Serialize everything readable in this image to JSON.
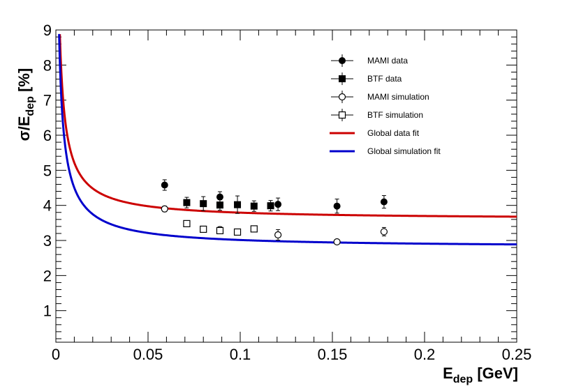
{
  "chart_data": {
    "type": "scatter",
    "title": "",
    "xlabel": {
      "main": "E",
      "sub": "dep",
      "unit": " [GeV]"
    },
    "ylabel": {
      "main": "σ/E",
      "sub": "dep",
      "unit": " [%]"
    },
    "xlim": [
      0,
      0.25
    ],
    "ylim": [
      0.1,
      9
    ],
    "x_ticks": [
      0,
      0.05,
      0.1,
      0.15,
      0.2,
      0.25
    ],
    "x_tick_labels": [
      "0",
      "0.05",
      "0.1",
      "0.15",
      "0.2",
      "0.25"
    ],
    "y_ticks": [
      1,
      2,
      3,
      4,
      5,
      6,
      7,
      8,
      9
    ],
    "y_tick_labels": [
      "1",
      "2",
      "3",
      "4",
      "5",
      "6",
      "7",
      "8",
      "9"
    ],
    "grid": false,
    "legend_position": "top-right",
    "series": [
      {
        "name": "MAMI data",
        "marker": "filled-circle",
        "color": "#000000",
        "points": [
          {
            "x": 0.059,
            "y": 4.58,
            "err": 0.15
          },
          {
            "x": 0.089,
            "y": 4.24,
            "err": 0.15
          },
          {
            "x": 0.1205,
            "y": 4.03,
            "err": 0.18
          },
          {
            "x": 0.1525,
            "y": 3.98,
            "err": 0.2
          },
          {
            "x": 0.178,
            "y": 4.1,
            "err": 0.18
          }
        ]
      },
      {
        "name": "BTF data",
        "marker": "filled-square",
        "color": "#000000",
        "points": [
          {
            "x": 0.071,
            "y": 4.08,
            "err": 0.15
          },
          {
            "x": 0.08,
            "y": 4.05,
            "err": 0.2
          },
          {
            "x": 0.089,
            "y": 4.01,
            "err": 0.15
          },
          {
            "x": 0.0985,
            "y": 4.02,
            "err": 0.25
          },
          {
            "x": 0.1075,
            "y": 3.98,
            "err": 0.15
          },
          {
            "x": 0.1165,
            "y": 3.99,
            "err": 0.15
          }
        ]
      },
      {
        "name": "MAMI simulation",
        "marker": "open-circle",
        "color": "#000000",
        "points": [
          {
            "x": 0.059,
            "y": 3.9,
            "err": 0.08
          },
          {
            "x": 0.089,
            "y": 3.31,
            "err": 0.08
          },
          {
            "x": 0.1205,
            "y": 3.16,
            "err": 0.15
          },
          {
            "x": 0.1525,
            "y": 2.96,
            "err": 0.06
          },
          {
            "x": 0.178,
            "y": 3.25,
            "err": 0.12
          }
        ]
      },
      {
        "name": "BTF simulation",
        "marker": "open-square",
        "color": "#000000",
        "points": [
          {
            "x": 0.071,
            "y": 3.48,
            "err": 0.05
          },
          {
            "x": 0.08,
            "y": 3.32,
            "err": 0.05
          },
          {
            "x": 0.089,
            "y": 3.28,
            "err": 0.05
          },
          {
            "x": 0.0985,
            "y": 3.24,
            "err": 0.05
          },
          {
            "x": 0.1075,
            "y": 3.33,
            "err": 0.05
          }
        ]
      }
    ],
    "fits": [
      {
        "name": "Global data fit",
        "color": "#cc0000",
        "a": 0.3775,
        "b": 3.6
      },
      {
        "name": "Global simulation fit",
        "color": "#0000cc",
        "a": 0.3525,
        "b": 2.8
      }
    ],
    "legend": [
      {
        "label": "MAMI data",
        "marker": "filled-circle"
      },
      {
        "label": "BTF data",
        "marker": "filled-square"
      },
      {
        "label": "MAMI simulation",
        "marker": "open-circle"
      },
      {
        "label": "BTF simulation",
        "marker": "open-square"
      },
      {
        "label": "Global data fit",
        "line_color": "#cc0000"
      },
      {
        "label": "Global simulation fit",
        "line_color": "#0000cc"
      }
    ]
  }
}
